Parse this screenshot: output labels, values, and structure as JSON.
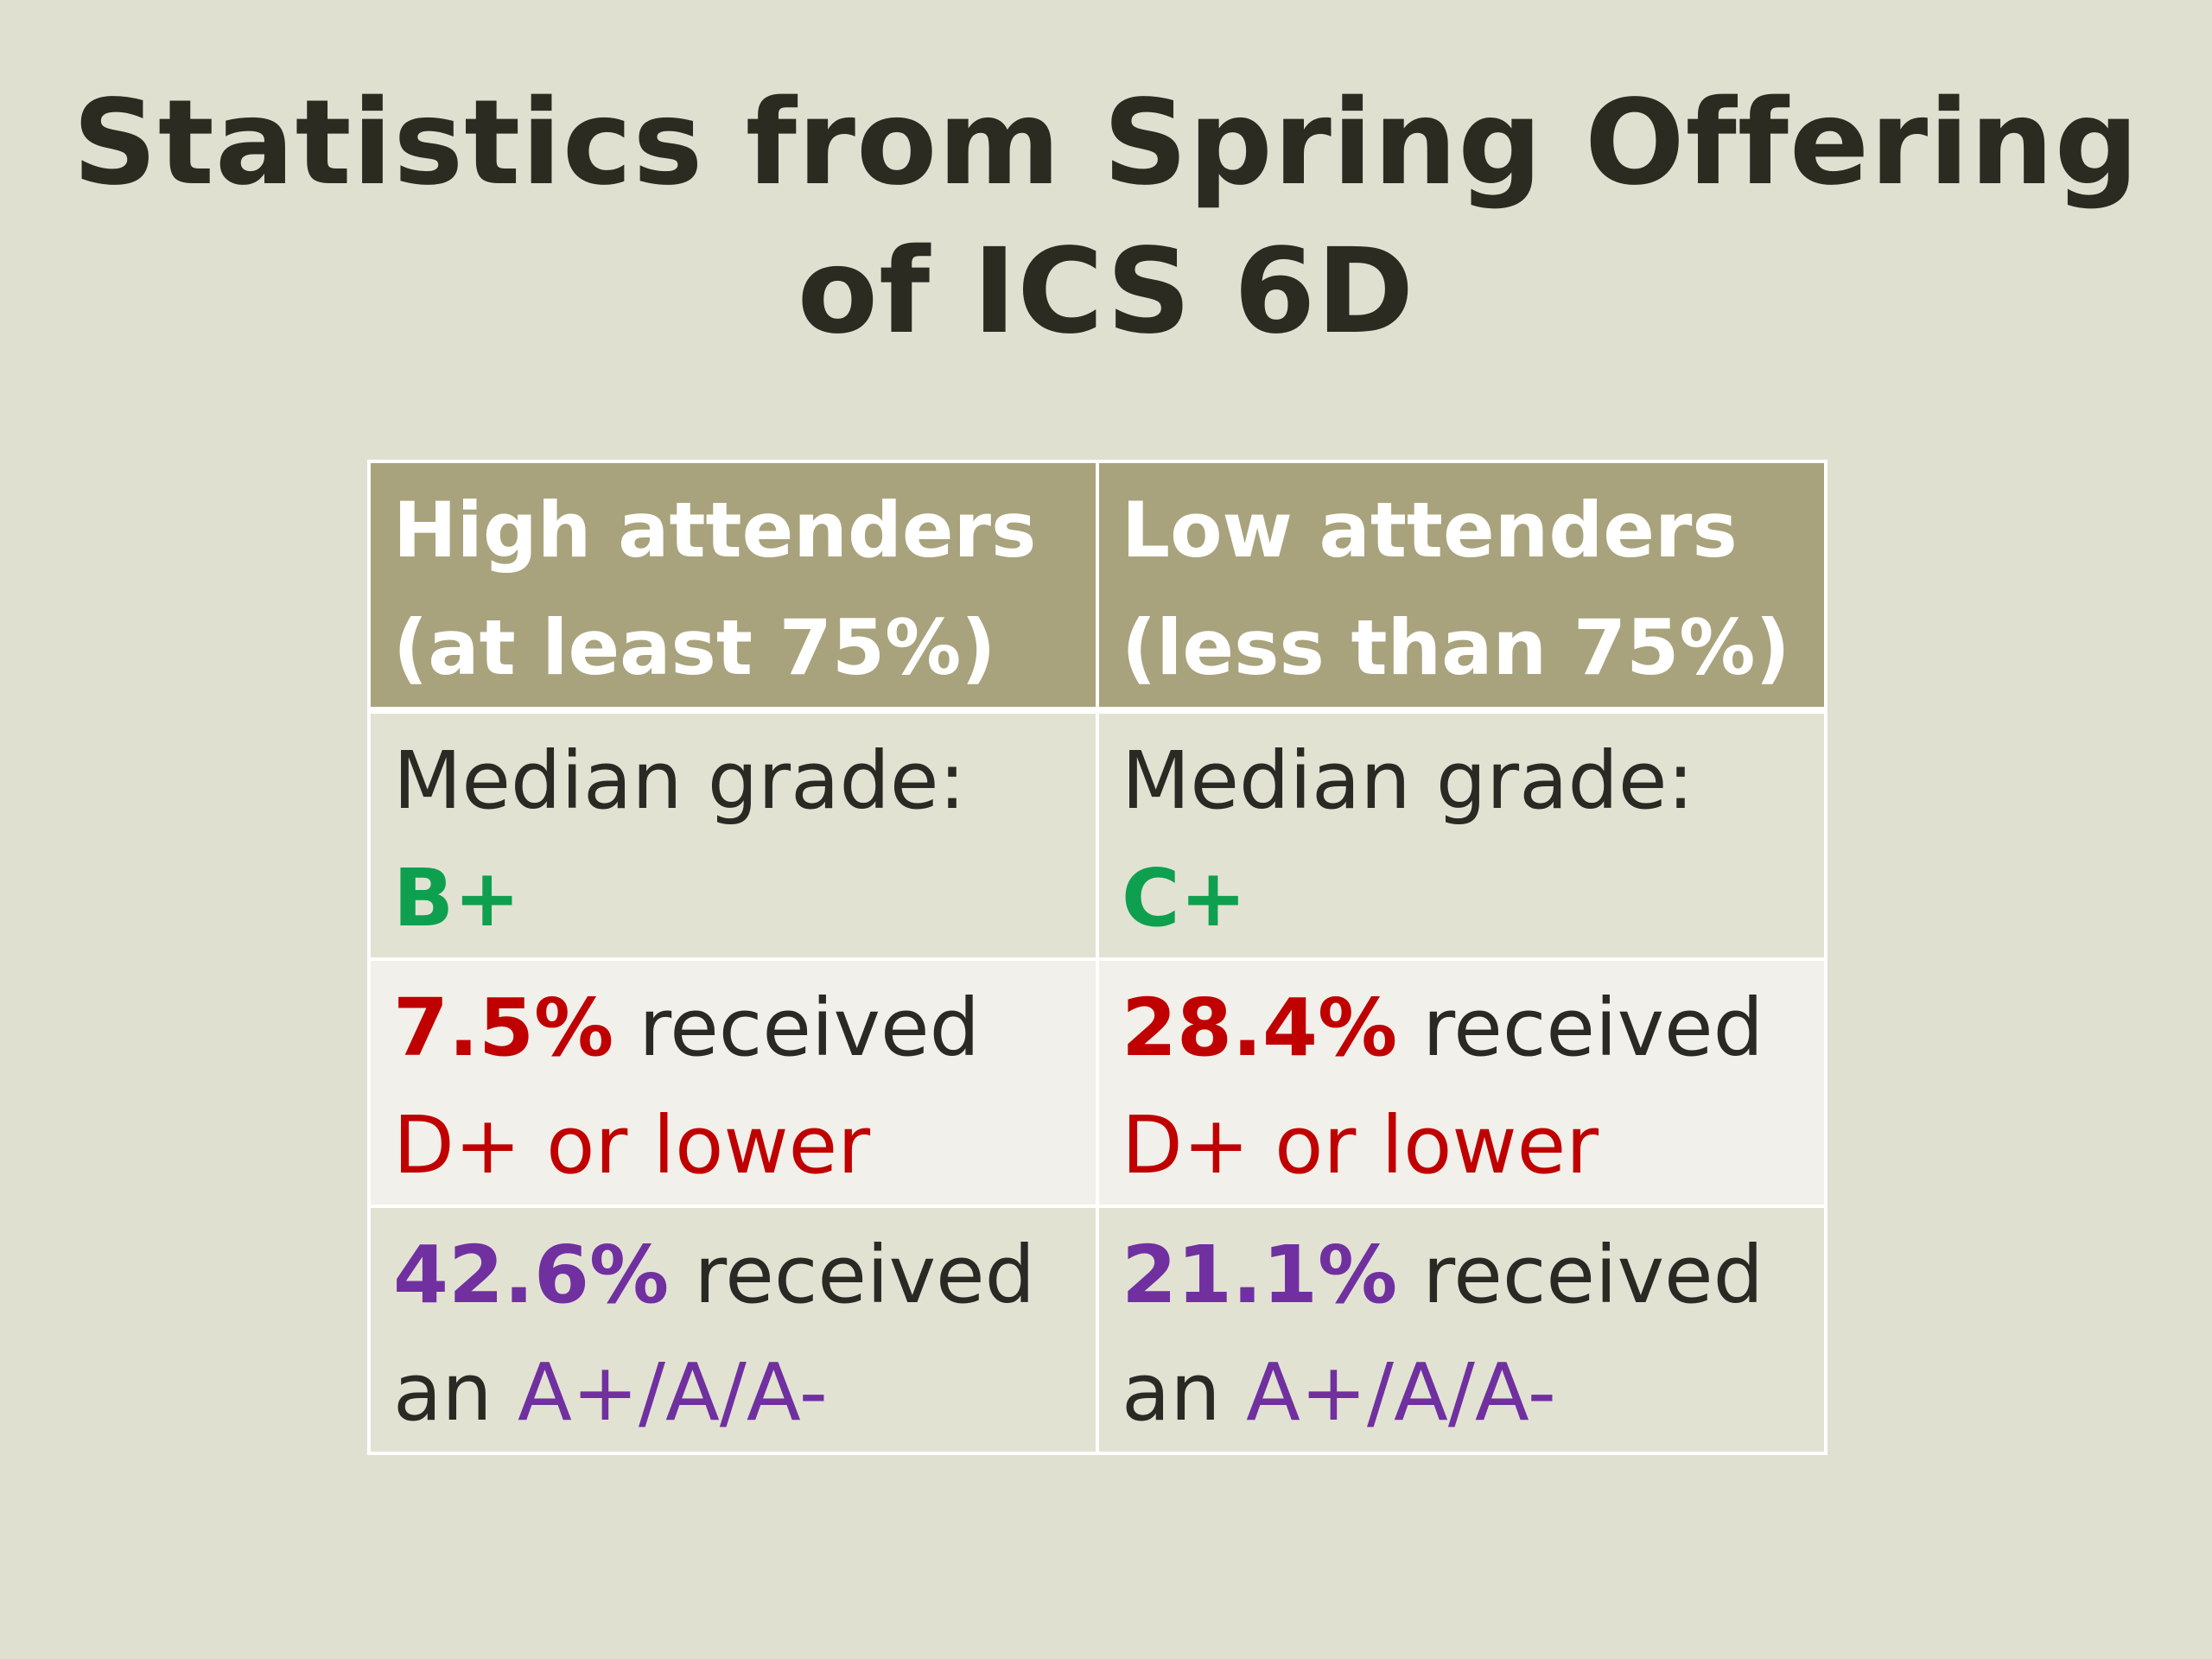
{
  "slide": {
    "title_line1": "Statistics from Spring Offering",
    "title_line2": "of ICS 6D"
  },
  "table": {
    "headers": [
      {
        "line1": "High attenders",
        "line2": "(at least 75%)"
      },
      {
        "line1": "Low attenders",
        "line2": "(less than 75%)"
      }
    ],
    "median_row": [
      {
        "label": "Median grade:",
        "grade": "B+"
      },
      {
        "label": "Median grade:",
        "grade": "C+"
      }
    ],
    "low_grade_row": [
      {
        "pct": "7.5%",
        "received": " received",
        "outcome": "D+ or lower"
      },
      {
        "pct": "28.4%",
        "received": " received",
        "outcome": "D+ or lower"
      }
    ],
    "high_grade_row": [
      {
        "pct": "42.6%",
        "received": " received",
        "an": "an ",
        "outcome": "A+/A/A-"
      },
      {
        "pct": "21.1%",
        "received": " received",
        "an": "an ",
        "outcome": "A+/A/A-"
      }
    ]
  },
  "colors": {
    "background": "#e0e0d1",
    "header": "#a8a37c",
    "green": "#0ea04f",
    "red": "#c00000",
    "purple": "#7030a0"
  }
}
